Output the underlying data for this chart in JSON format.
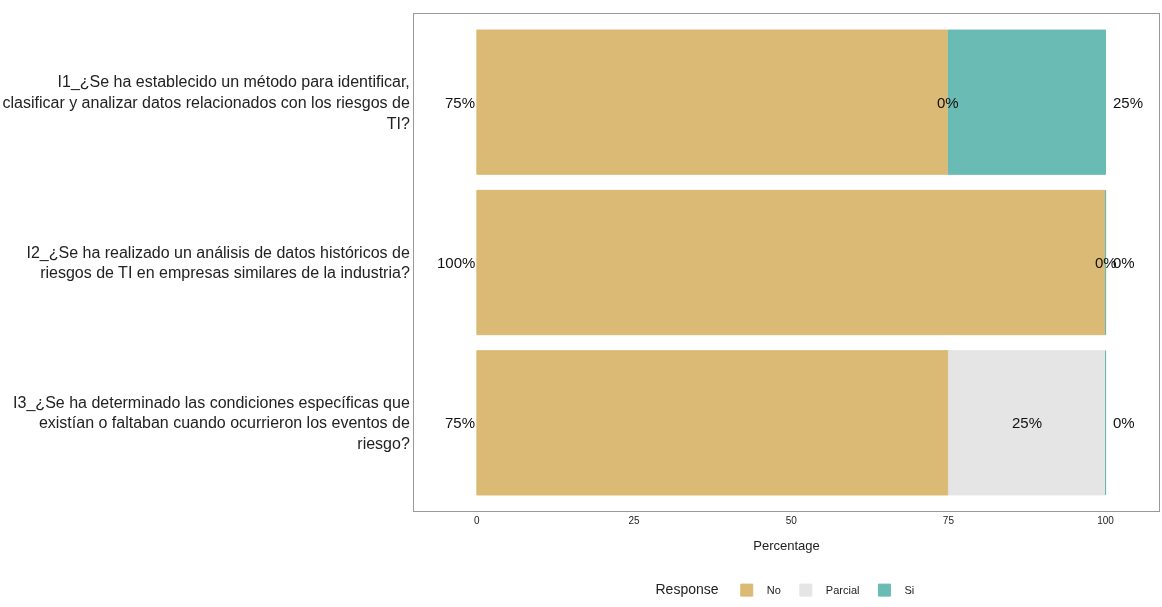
{
  "chart_data": {
    "type": "bar",
    "orientation": "horizontal",
    "stacked": true,
    "xlabel": "Percentage",
    "legend_title": "Response",
    "legend": "bottom",
    "categories": [
      "I1_¿Se ha establecido un método para identificar,\nclasificar y analizar datos relacionados con los riesgos de\nTI?",
      "I2_¿Se ha realizado un análisis de datos históricos de\nriesgos de TI en empresas similares de la industria?",
      "I3_¿Se ha determinado las condiciones específicas que\nexistían o faltaban cuando ocurrieron los eventos de\nriesgo?"
    ],
    "series": [
      {
        "name": "No",
        "color": "#d6b365",
        "values": [
          75,
          100,
          75
        ],
        "value_labels": [
          "75%",
          "100%",
          "75%"
        ]
      },
      {
        "name": "Parcial",
        "color": "#e3e3e3",
        "values": [
          0,
          0,
          25
        ],
        "value_labels": [
          "0%",
          "0%",
          "25%"
        ]
      },
      {
        "name": "Si",
        "color": "#5ab4ac",
        "values": [
          25,
          0,
          0
        ],
        "value_labels": [
          "25%",
          "0%",
          "0%"
        ]
      }
    ],
    "xlim": [
      -10,
      108.5
    ],
    "xticks": [
      0,
      25,
      50,
      75,
      100
    ]
  }
}
